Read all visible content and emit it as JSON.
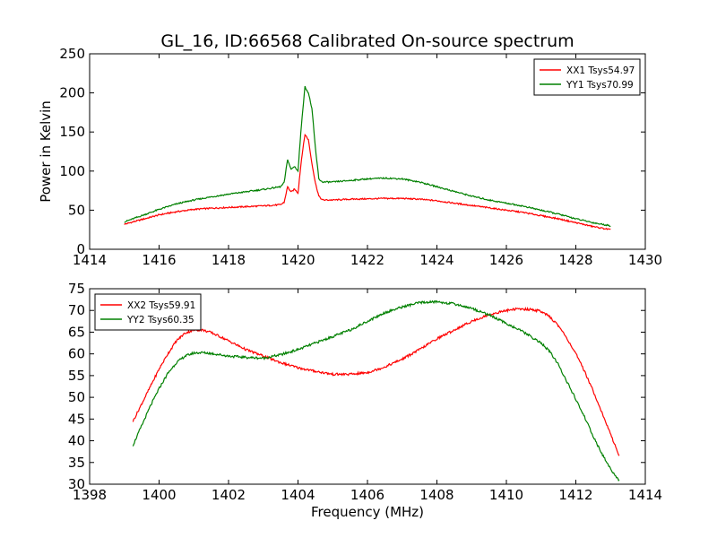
{
  "figure": {
    "title": "GL_16, ID:66568 Calibrated On-source spectrum",
    "ylabel": "Power in Kelvin",
    "xlabel": "Frequency (MHz)"
  },
  "chart_data": [
    {
      "type": "line",
      "title": "GL_16, ID:66568 Calibrated On-source spectrum",
      "xlabel": "",
      "ylabel": "Power in Kelvin",
      "xlim": [
        1414,
        1430
      ],
      "ylim": [
        0,
        250
      ],
      "xticks": [
        "1414",
        "1416",
        "1418",
        "1420",
        "1422",
        "1424",
        "1426",
        "1428",
        "1430"
      ],
      "yticks": [
        "0",
        "50",
        "100",
        "150",
        "200",
        "250"
      ],
      "grid": false,
      "legend": "top-right",
      "series": [
        {
          "name": "XX1 Tsys54.97",
          "color": "#ff0000",
          "x": [
            1415.0,
            1415.5,
            1416.0,
            1416.5,
            1417.0,
            1417.5,
            1418.0,
            1418.5,
            1419.0,
            1419.5,
            1419.6,
            1419.7,
            1419.8,
            1419.9,
            1420.0,
            1420.1,
            1420.2,
            1420.3,
            1420.4,
            1420.5,
            1420.6,
            1420.7,
            1421.0,
            1421.5,
            1422.0,
            1422.5,
            1423.0,
            1423.5,
            1424.0,
            1424.5,
            1425.0,
            1425.5,
            1426.0,
            1426.5,
            1427.0,
            1427.5,
            1428.0,
            1428.5,
            1429.0
          ],
          "y": [
            32,
            38,
            44,
            48,
            51,
            52.5,
            53.5,
            54.5,
            55.5,
            57,
            60,
            80,
            73,
            77,
            72,
            115,
            147,
            140,
            110,
            85,
            68,
            63,
            63,
            64,
            64.5,
            65,
            65,
            64,
            62,
            59,
            56,
            53,
            50,
            47,
            43,
            39,
            34,
            29,
            25
          ]
        },
        {
          "name": "YY1 Tsys70.99",
          "color": "#008000",
          "x": [
            1415.0,
            1415.5,
            1416.0,
            1416.5,
            1417.0,
            1417.5,
            1418.0,
            1418.5,
            1419.0,
            1419.5,
            1419.6,
            1419.7,
            1419.8,
            1419.9,
            1420.0,
            1420.1,
            1420.2,
            1420.3,
            1420.4,
            1420.5,
            1420.6,
            1420.7,
            1421.0,
            1421.5,
            1422.0,
            1422.5,
            1423.0,
            1423.5,
            1424.0,
            1424.5,
            1425.0,
            1425.5,
            1426.0,
            1426.5,
            1427.0,
            1427.5,
            1428.0,
            1428.5,
            1429.0
          ],
          "y": [
            35,
            43,
            51,
            58,
            63,
            67,
            70.5,
            73.5,
            76.5,
            80,
            85,
            115,
            102,
            106,
            100,
            160,
            208,
            200,
            180,
            130,
            90,
            86,
            86,
            88,
            90,
            91,
            90,
            86,
            80,
            74,
            68,
            63,
            59,
            55,
            50,
            45,
            39,
            34,
            30
          ]
        }
      ]
    },
    {
      "type": "line",
      "title": "",
      "xlabel": "Frequency (MHz)",
      "ylabel": "",
      "xlim": [
        1398,
        1414
      ],
      "ylim": [
        30,
        75
      ],
      "xticks": [
        "1398",
        "1400",
        "1402",
        "1404",
        "1406",
        "1408",
        "1410",
        "1412",
        "1414"
      ],
      "yticks": [
        "30",
        "35",
        "40",
        "45",
        "50",
        "55",
        "60",
        "65",
        "70",
        "75"
      ],
      "grid": false,
      "legend": "top-left",
      "series": [
        {
          "name": "XX2 Tsys59.91",
          "color": "#ff0000",
          "x": [
            1399.25,
            1399.5,
            1399.75,
            1400.0,
            1400.25,
            1400.5,
            1400.75,
            1401.0,
            1401.25,
            1401.5,
            1401.75,
            1402.0,
            1402.5,
            1403.0,
            1403.5,
            1404.0,
            1404.5,
            1405.0,
            1405.5,
            1406.0,
            1406.5,
            1407.0,
            1407.5,
            1408.0,
            1408.5,
            1409.0,
            1409.5,
            1410.0,
            1410.25,
            1410.5,
            1410.75,
            1411.0,
            1411.25,
            1411.5,
            1411.75,
            1412.0,
            1412.25,
            1412.5,
            1412.75,
            1413.0,
            1413.25
          ],
          "y": [
            44.5,
            48.5,
            52.5,
            56.5,
            60,
            63,
            64.8,
            65.5,
            65.5,
            64.9,
            64,
            63,
            61,
            59.5,
            58,
            56.8,
            56,
            55.3,
            55.3,
            55.7,
            57,
            58.8,
            61,
            63.5,
            65.5,
            67.5,
            69,
            70,
            70.3,
            70.3,
            70.2,
            69.8,
            68.5,
            66.5,
            63.5,
            60,
            56,
            51.5,
            46.5,
            41.5,
            36.5
          ]
        },
        {
          "name": "YY2 Tsys60.35",
          "color": "#008000",
          "x": [
            1399.25,
            1399.5,
            1399.75,
            1400.0,
            1400.25,
            1400.5,
            1400.75,
            1401.0,
            1401.25,
            1401.5,
            1401.75,
            1402.0,
            1402.5,
            1403.0,
            1403.5,
            1404.0,
            1404.5,
            1405.0,
            1405.5,
            1406.0,
            1406.5,
            1407.0,
            1407.5,
            1408.0,
            1408.5,
            1409.0,
            1409.5,
            1410.0,
            1410.5,
            1411.0,
            1411.25,
            1411.5,
            1411.75,
            1412.0,
            1412.25,
            1412.5,
            1412.75,
            1413.0,
            1413.25
          ],
          "y": [
            39,
            43.5,
            48,
            52,
            55.5,
            58,
            59.5,
            60.2,
            60.3,
            60.1,
            59.8,
            59.5,
            59.2,
            59,
            59.8,
            61,
            62.5,
            64,
            65.5,
            67.5,
            69.5,
            70.8,
            71.8,
            72,
            71.5,
            70.5,
            69,
            67,
            65,
            62.5,
            60.5,
            57.5,
            53.5,
            49.5,
            45.5,
            41,
            37,
            33.5,
            30.8
          ]
        }
      ]
    }
  ]
}
